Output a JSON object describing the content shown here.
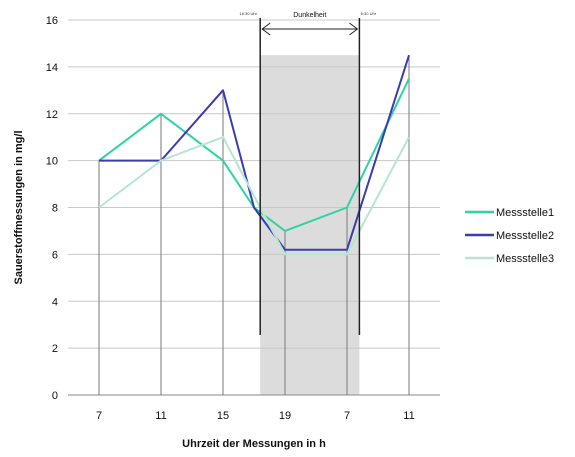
{
  "chart_data": {
    "type": "line",
    "title": "",
    "xlabel": "Uhrzeit der Messungen in h",
    "ylabel": "Sauerstoffmessungen in mg/l",
    "categories": [
      "7",
      "11",
      "15",
      "19",
      "7",
      "11"
    ],
    "ylim": [
      0,
      16
    ],
    "yticks": [
      "0",
      "2",
      "4",
      "6",
      "8",
      "10",
      "12",
      "14",
      "16"
    ],
    "grid": "horizontal",
    "legend_position": "right",
    "series": [
      {
        "name": "Messstelle1",
        "color": "#2ed3a4",
        "points": [
          [
            0,
            10
          ],
          [
            1,
            12
          ],
          [
            2,
            10
          ],
          [
            2.5,
            8
          ],
          [
            3,
            7
          ],
          [
            4,
            8
          ],
          [
            5,
            13.5
          ]
        ]
      },
      {
        "name": "Messstelle2",
        "color": "#3a3cb0",
        "points": [
          [
            0,
            10
          ],
          [
            1,
            10
          ],
          [
            2,
            13
          ],
          [
            2.5,
            8
          ],
          [
            3,
            6.2
          ],
          [
            4,
            6.2
          ],
          [
            5,
            14.5
          ]
        ]
      },
      {
        "name": "Messstelle3",
        "color": "#b5e6d5",
        "points": [
          [
            0,
            8
          ],
          [
            1,
            10
          ],
          [
            2,
            11
          ],
          [
            3,
            6
          ],
          [
            4,
            6
          ],
          [
            5,
            11
          ]
        ]
      }
    ],
    "dark_period": {
      "label": "Dunkelheit",
      "start_label": "18:30 Uhr",
      "end_label": "6:30 Uhr",
      "x_start": 2.6,
      "x_end": 4.2,
      "fill": "#dcdcdc"
    }
  }
}
